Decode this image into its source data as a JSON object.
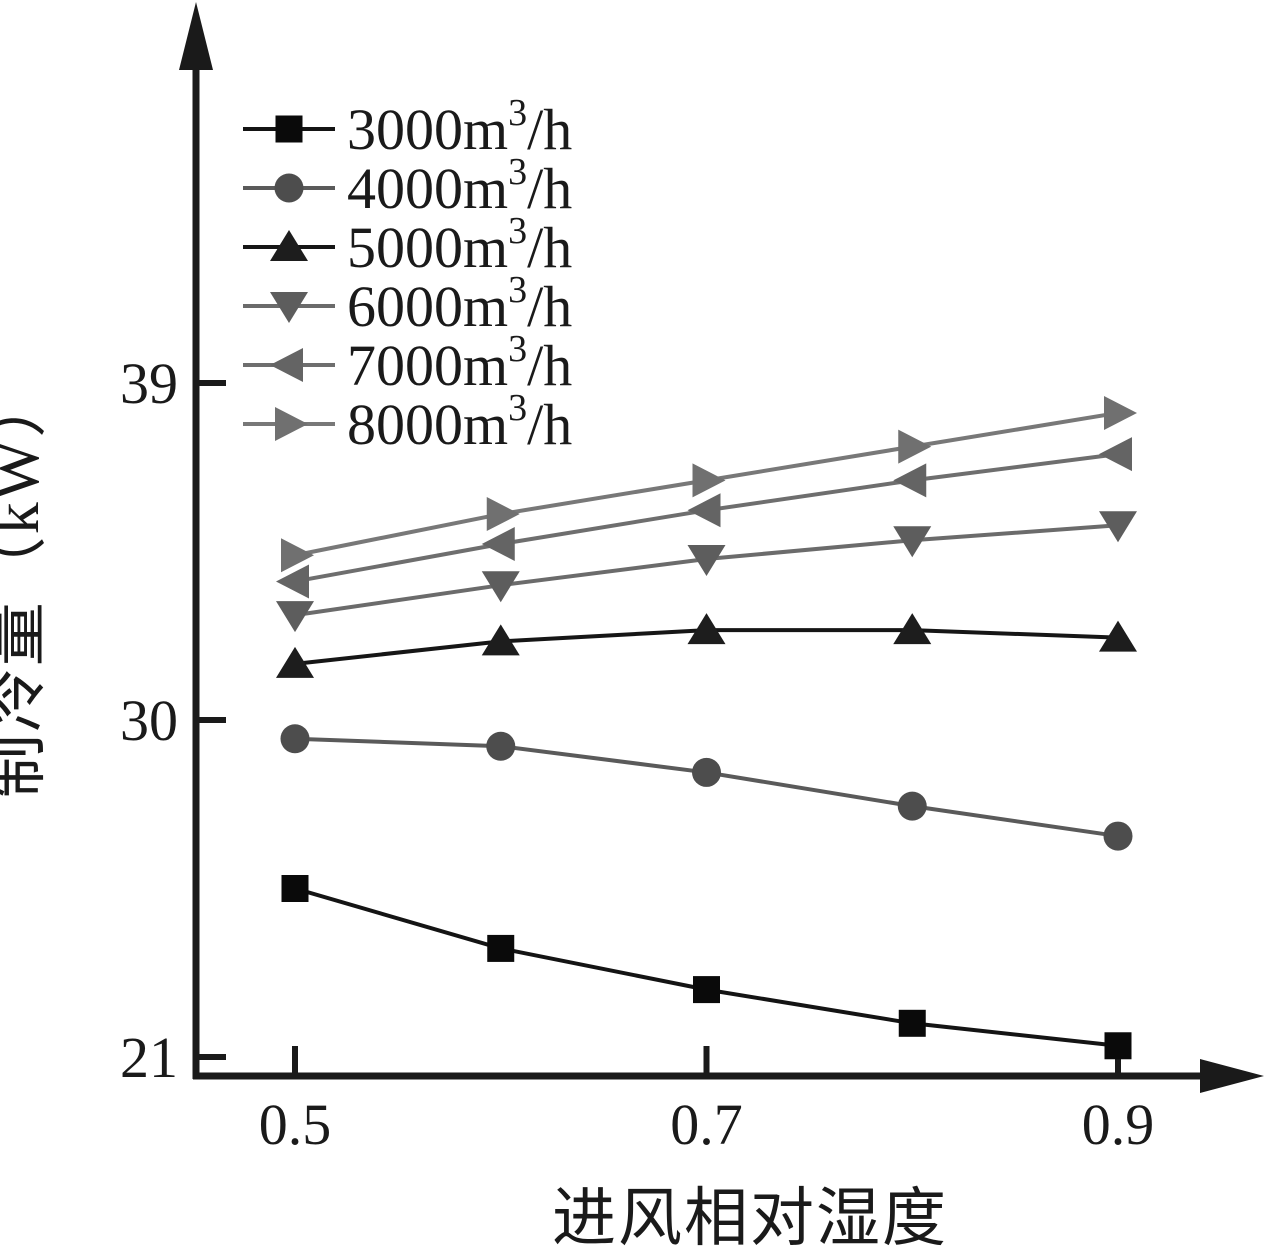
{
  "chart_data": {
    "type": "line",
    "title": "",
    "xlabel": "进风相对湿度",
    "ylabel": "制冷量（kW）",
    "x": [
      0.5,
      0.6,
      0.7,
      0.8,
      0.9
    ],
    "xlim": [
      0.45,
      0.97
    ],
    "ylim": [
      20.5,
      40.2
    ],
    "xticks": {
      "values": [
        0.5,
        0.7,
        0.9
      ],
      "labels": [
        "0.5",
        "0.7",
        "0.9"
      ]
    },
    "yticks": {
      "values": [
        21,
        30,
        39
      ],
      "labels": [
        "21",
        "30",
        "39"
      ]
    },
    "grid": false,
    "legend_position": "upper-left-inside",
    "axis_color": "#1a1a1a",
    "series": [
      {
        "name": "3000m³/h",
        "label_pre": "3000m",
        "label_sup": "3",
        "label_post": "/h",
        "marker": "square",
        "color": "#0a0a0a",
        "line_color": "#141414",
        "values": [
          25.5,
          23.9,
          22.8,
          21.9,
          21.3
        ]
      },
      {
        "name": "4000m³/h",
        "label_pre": "4000m",
        "label_sup": "3",
        "label_post": "/h",
        "marker": "circle",
        "color": "#4d4d4d",
        "line_color": "#5a5a5a",
        "values": [
          29.5,
          29.3,
          28.6,
          27.7,
          26.9
        ]
      },
      {
        "name": "5000m³/h",
        "label_pre": "5000m",
        "label_sup": "3",
        "label_post": "/h",
        "marker": "triangle-up",
        "color": "#1d1d1d",
        "line_color": "#161616",
        "values": [
          31.5,
          32.1,
          32.4,
          32.4,
          32.2
        ]
      },
      {
        "name": "6000m³/h",
        "label_pre": "6000m",
        "label_sup": "3",
        "label_post": "/h",
        "marker": "triangle-down",
        "color": "#5d5d5d",
        "line_color": "#6b6b6b",
        "values": [
          32.8,
          33.6,
          34.3,
          34.8,
          35.2
        ]
      },
      {
        "name": "7000m³/h",
        "label_pre": "7000m",
        "label_sup": "3",
        "label_post": "/h",
        "marker": "triangle-left",
        "color": "#646464",
        "line_color": "#6e6e6e",
        "values": [
          33.7,
          34.7,
          35.6,
          36.4,
          37.1
        ]
      },
      {
        "name": "8000m³/h",
        "label_pre": "8000m",
        "label_sup": "3",
        "label_post": "/h",
        "marker": "triangle-right",
        "color": "#707070",
        "line_color": "#787878",
        "values": [
          34.4,
          35.5,
          36.4,
          37.3,
          38.2
        ]
      }
    ]
  }
}
